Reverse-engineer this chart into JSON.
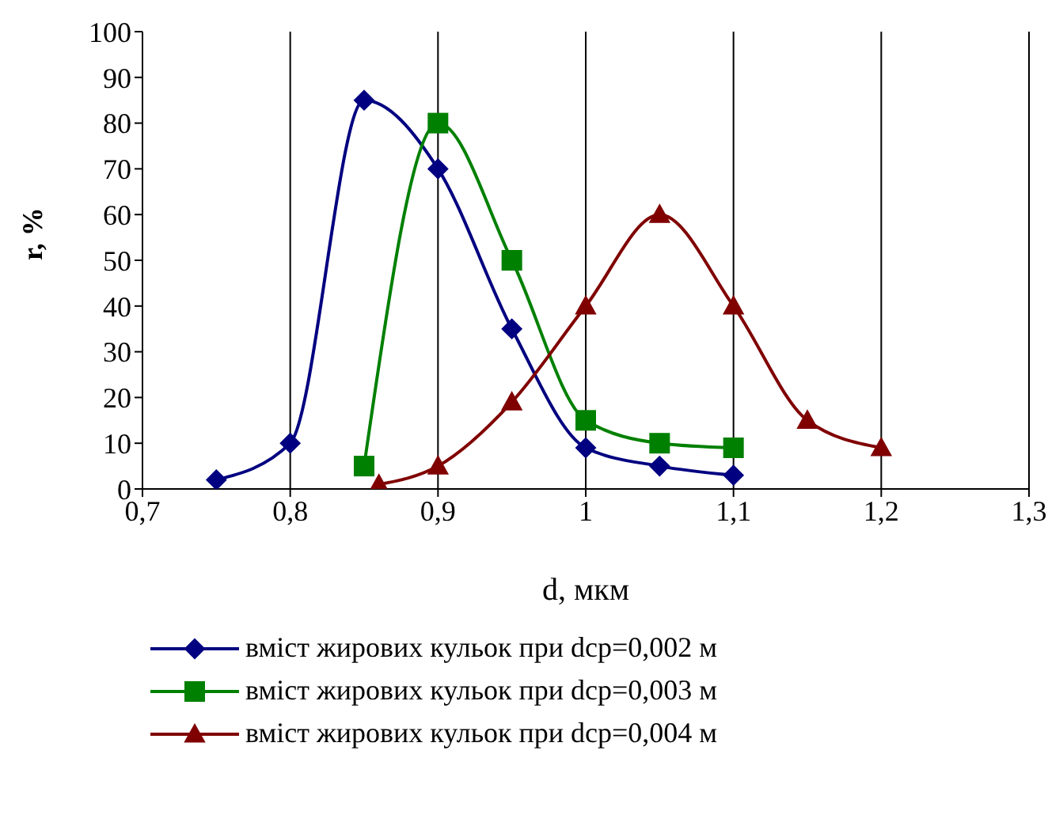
{
  "chart_data": {
    "type": "line",
    "xlabel": "d, мкм",
    "ylabel": "r, %",
    "xlim": [
      0.7,
      1.3
    ],
    "xticks": [
      {
        "value": 0.7,
        "label": "0,7"
      },
      {
        "value": 0.8,
        "label": "0,8"
      },
      {
        "value": 0.9,
        "label": "0,9"
      },
      {
        "value": 1,
        "label": "1"
      },
      {
        "value": 1.1,
        "label": "1,1"
      },
      {
        "value": 1.2,
        "label": "1,2"
      },
      {
        "value": 1.3,
        "label": "1,3"
      }
    ],
    "ylim": [
      0,
      100
    ],
    "yticks": [
      0,
      10,
      20,
      30,
      40,
      50,
      60,
      70,
      80,
      90,
      100
    ],
    "grid": "x",
    "legend": "bottom",
    "line_style": "solid",
    "series": [
      {
        "name": "вміст жирових кульок при dср=0,002 м",
        "color": "#000080",
        "marker": "diamond",
        "x": [
          0.75,
          0.8,
          0.85,
          0.9,
          0.95,
          1.0,
          1.05,
          1.1
        ],
        "values": [
          2,
          10,
          85,
          70,
          35,
          9,
          5,
          3
        ]
      },
      {
        "name": "вміст жирових кульок при dср=0,003 м",
        "color": "#008000",
        "marker": "square",
        "x": [
          0.85,
          0.9,
          0.95,
          1.0,
          1.05,
          1.1
        ],
        "values": [
          5,
          80,
          50,
          15,
          10,
          9
        ]
      },
      {
        "name": "вміст жирових кульок при dср=0,004 м",
        "color": "#800000",
        "marker": "triangle",
        "x": [
          0.86,
          0.9,
          0.95,
          1.0,
          1.05,
          1.1,
          1.15,
          1.2
        ],
        "values": [
          1,
          5,
          19,
          40,
          60,
          40,
          15,
          9
        ]
      }
    ]
  }
}
